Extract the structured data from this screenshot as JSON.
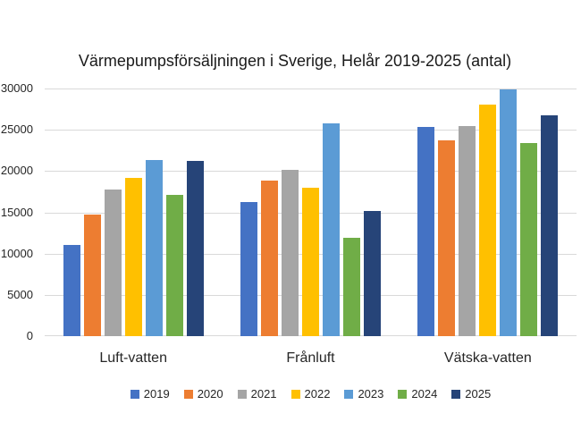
{
  "chart_data": {
    "type": "bar",
    "title": "Värmepumpsförsäljningen i Sverige, Helår 2019-2025 (antal)",
    "categories": [
      "Luft-vatten",
      "Frånluft",
      "Vätska-vatten"
    ],
    "series": [
      {
        "name": "2019",
        "color": "#4472C4",
        "values": [
          11000,
          16300,
          25300
        ]
      },
      {
        "name": "2020",
        "color": "#ED7D31",
        "values": [
          14700,
          18900,
          23700
        ]
      },
      {
        "name": "2021",
        "color": "#A5A5A5",
        "values": [
          17800,
          20100,
          25500
        ]
      },
      {
        "name": "2022",
        "color": "#FFC000",
        "values": [
          19200,
          18000,
          28100
        ]
      },
      {
        "name": "2023",
        "color": "#5B9BD5",
        "values": [
          21300,
          25800,
          29900
        ]
      },
      {
        "name": "2024",
        "color": "#70AD47",
        "values": [
          17100,
          11900,
          23400
        ]
      },
      {
        "name": "2025",
        "color": "#264478",
        "values": [
          21200,
          15200,
          26700
        ]
      }
    ],
    "ylim": [
      0,
      30000
    ],
    "yticks": [
      0,
      5000,
      10000,
      15000,
      20000,
      25000,
      30000
    ],
    "grid": true,
    "gridline_color": "#D9D9D9",
    "background_color": "#FFFFFF",
    "legend_position": "bottom",
    "xlabel": "",
    "ylabel": ""
  }
}
